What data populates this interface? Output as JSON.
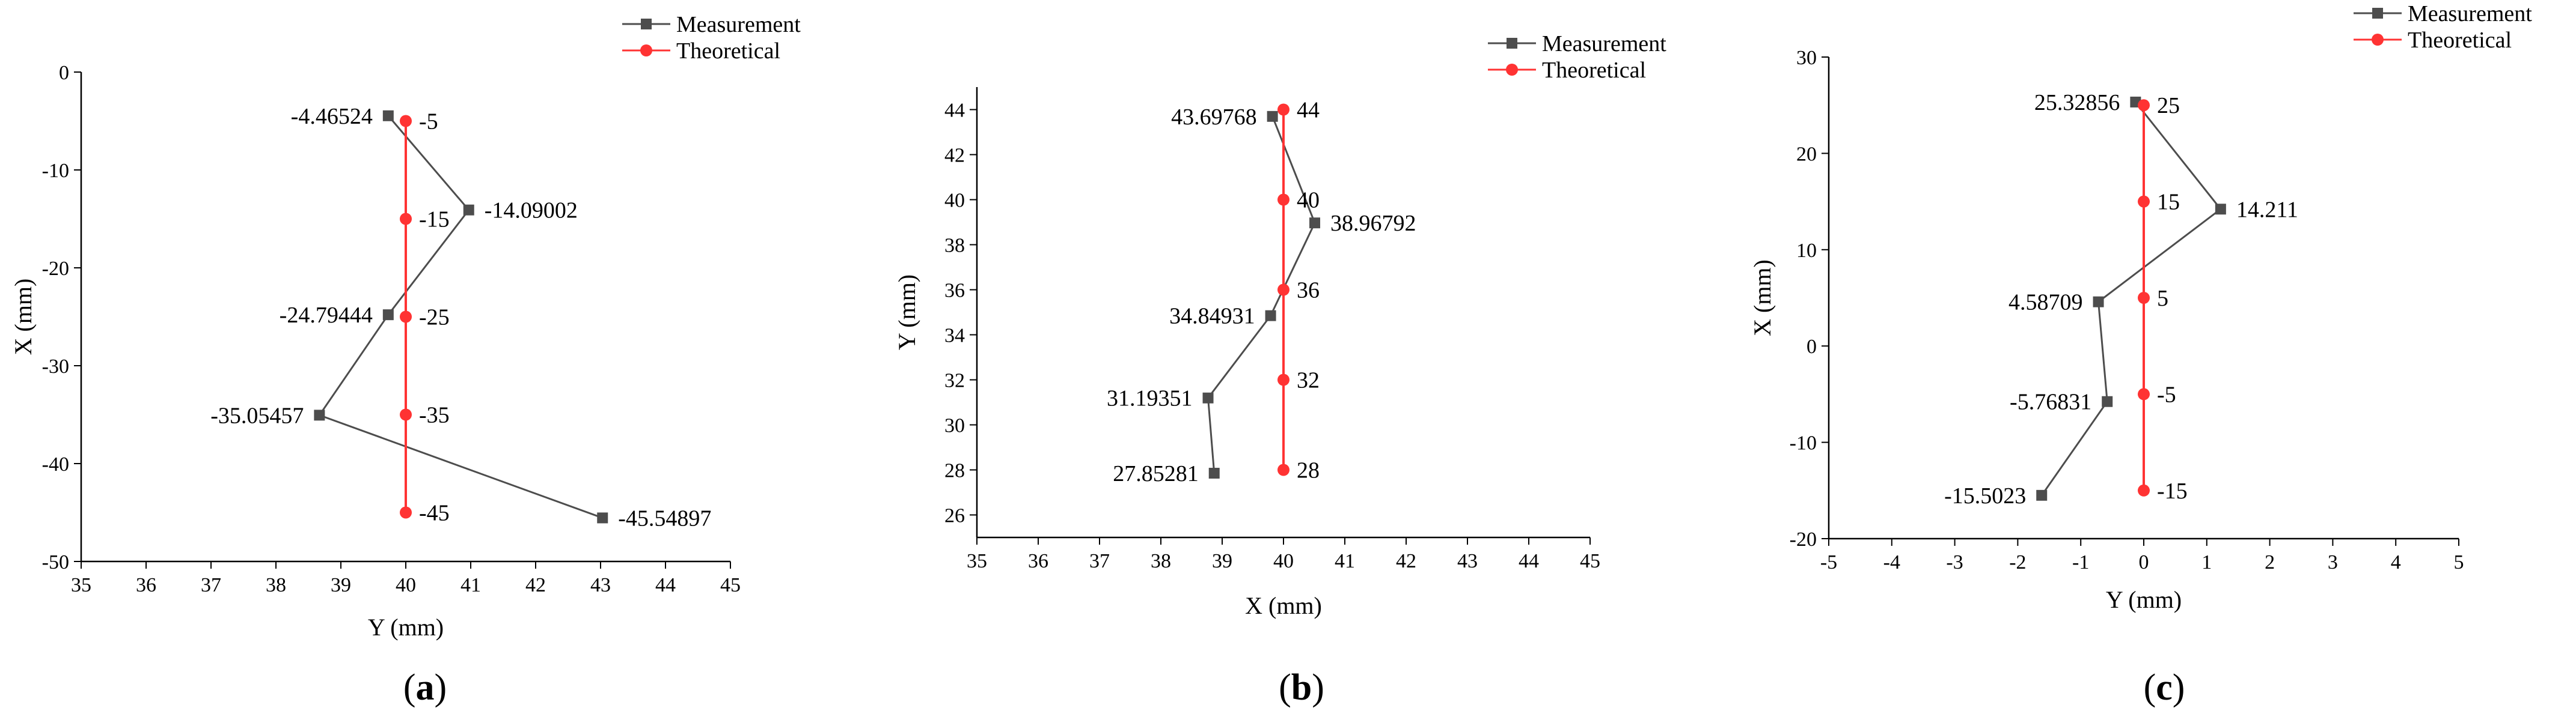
{
  "chart_data": [
    {
      "type": "line",
      "panel_label": "a",
      "xlabel": "Y (mm)",
      "ylabel": "X (mm)",
      "xlim": [
        35,
        45
      ],
      "ylim": [
        -50,
        0
      ],
      "xticks": [
        35,
        36,
        37,
        38,
        39,
        40,
        41,
        42,
        43,
        44,
        45
      ],
      "yticks": [
        -50,
        -40,
        -30,
        -20,
        -10,
        0
      ],
      "legend_position": "top-right",
      "series": [
        {
          "name": "Measurement",
          "color": "#4d4d4d",
          "marker": "square",
          "x": [
            39.73,
            40.97,
            39.73,
            38.67,
            43.03
          ],
          "y": [
            -4.46524,
            -14.09002,
            -24.79444,
            -35.05457,
            -45.54897
          ],
          "labels": [
            "-4.46524",
            "-14.09002",
            "-24.79444",
            "-35.05457",
            "-45.54897"
          ],
          "label_side": [
            "left",
            "right",
            "left",
            "left",
            "right"
          ]
        },
        {
          "name": "Theoretical",
          "color": "#ff3333",
          "marker": "circle",
          "x": [
            40,
            40,
            40,
            40,
            40
          ],
          "y": [
            -5,
            -15,
            -25,
            -35,
            -45
          ],
          "labels": [
            "-5",
            "-15",
            "-25",
            "-35",
            "-45"
          ],
          "label_side": [
            "right",
            "right",
            "right",
            "right",
            "right"
          ]
        }
      ]
    },
    {
      "type": "line",
      "panel_label": "b",
      "xlabel": "X (mm)",
      "ylabel": "Y (mm)",
      "xlim": [
        35,
        45
      ],
      "ylim": [
        25,
        45
      ],
      "xticks": [
        35,
        36,
        37,
        38,
        39,
        40,
        41,
        42,
        43,
        44,
        45
      ],
      "yticks": [
        26,
        28,
        30,
        32,
        34,
        36,
        38,
        40,
        42,
        44
      ],
      "legend_position": "top-right",
      "series": [
        {
          "name": "Measurement",
          "color": "#4d4d4d",
          "marker": "square",
          "x": [
            39.82,
            40.51,
            39.79,
            38.77,
            38.87
          ],
          "y": [
            43.69768,
            38.96792,
            34.84931,
            31.19351,
            27.85281
          ],
          "labels": [
            "43.69768",
            "38.96792",
            "34.84931",
            "31.19351",
            "27.85281"
          ],
          "label_side": [
            "left",
            "right",
            "left",
            "left",
            "left"
          ]
        },
        {
          "name": "Theoretical",
          "color": "#ff3333",
          "marker": "circle",
          "x": [
            40,
            40,
            40,
            40,
            40
          ],
          "y": [
            44,
            40,
            36,
            32,
            28
          ],
          "labels": [
            "44",
            "40",
            "36",
            "32",
            "28"
          ],
          "label_side": [
            "right",
            "right",
            "right",
            "right",
            "right"
          ]
        }
      ]
    },
    {
      "type": "line",
      "panel_label": "c",
      "xlabel": "Y (mm)",
      "ylabel": "X (mm)",
      "xlim": [
        -5,
        5
      ],
      "ylim": [
        -20,
        30
      ],
      "xticks": [
        -5,
        -4,
        -3,
        -2,
        -1,
        0,
        1,
        2,
        3,
        4,
        5
      ],
      "yticks": [
        -20,
        -10,
        0,
        10,
        20,
        30
      ],
      "legend_position": "top-right",
      "series": [
        {
          "name": "Measurement",
          "color": "#4d4d4d",
          "marker": "square",
          "x": [
            -0.13,
            1.22,
            -0.72,
            -0.58,
            -1.62
          ],
          "y": [
            25.32856,
            14.211,
            4.58709,
            -5.76831,
            -15.5023
          ],
          "labels": [
            "25.32856",
            "14.211",
            "4.58709",
            "-5.76831",
            "-15.5023"
          ],
          "label_side": [
            "left",
            "right",
            "left",
            "left",
            "left"
          ]
        },
        {
          "name": "Theoretical",
          "color": "#ff3333",
          "marker": "circle",
          "x": [
            0,
            0,
            0,
            0,
            0
          ],
          "y": [
            25,
            15,
            5,
            -5,
            -15
          ],
          "labels": [
            "25",
            "15",
            "5",
            "-5",
            "-15"
          ],
          "label_side": [
            "right",
            "right",
            "right",
            "right",
            "right"
          ]
        }
      ]
    }
  ]
}
